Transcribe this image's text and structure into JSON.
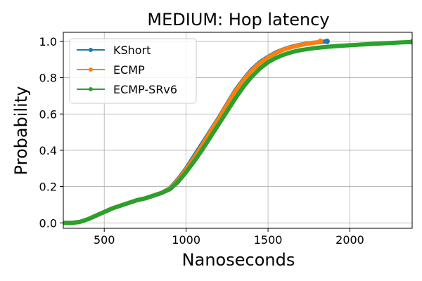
{
  "chart_data": {
    "type": "line",
    "title": "MEDIUM: Hop latency",
    "xlabel": "Nanoseconds",
    "ylabel": "Probability",
    "xlim": [
      250,
      2380
    ],
    "ylim": [
      -0.03,
      1.05
    ],
    "xticks": [
      500,
      1000,
      1500,
      2000
    ],
    "yticks": [
      0.0,
      0.2,
      0.4,
      0.6,
      0.8,
      1.0
    ],
    "xtick_labels": [
      "500",
      "1000",
      "1500",
      "2000"
    ],
    "ytick_labels": [
      "0.0",
      "0.2",
      "0.4",
      "0.6",
      "0.8",
      "1.0"
    ],
    "grid": true,
    "legend_position": "top-left",
    "series": [
      {
        "name": "KShort",
        "color": "#1f77b4",
        "x": [
          250,
          300,
          350,
          400,
          450,
          500,
          550,
          600,
          650,
          700,
          750,
          800,
          850,
          900,
          950,
          1000,
          1050,
          1100,
          1150,
          1200,
          1250,
          1300,
          1350,
          1400,
          1450,
          1500,
          1550,
          1600,
          1650,
          1700,
          1750,
          1800,
          1830,
          1860
        ],
        "y": [
          0.0,
          0.0,
          0.005,
          0.02,
          0.04,
          0.06,
          0.08,
          0.095,
          0.11,
          0.125,
          0.135,
          0.15,
          0.165,
          0.19,
          0.24,
          0.3,
          0.37,
          0.44,
          0.51,
          0.58,
          0.655,
          0.73,
          0.79,
          0.845,
          0.885,
          0.915,
          0.94,
          0.958,
          0.972,
          0.982,
          0.99,
          0.995,
          0.998,
          1.0
        ]
      },
      {
        "name": "ECMP",
        "color": "#ff7f0e",
        "x": [
          250,
          300,
          350,
          400,
          450,
          500,
          550,
          600,
          650,
          700,
          750,
          800,
          850,
          900,
          950,
          1000,
          1050,
          1100,
          1150,
          1200,
          1250,
          1300,
          1350,
          1400,
          1450,
          1500,
          1550,
          1600,
          1650,
          1700,
          1750,
          1800,
          1820
        ],
        "y": [
          0.0,
          0.0,
          0.005,
          0.02,
          0.04,
          0.06,
          0.08,
          0.095,
          0.11,
          0.125,
          0.135,
          0.15,
          0.165,
          0.19,
          0.235,
          0.295,
          0.36,
          0.43,
          0.505,
          0.575,
          0.65,
          0.725,
          0.785,
          0.84,
          0.88,
          0.912,
          0.937,
          0.956,
          0.97,
          0.98,
          0.989,
          0.995,
          1.0
        ]
      },
      {
        "name": "ECMP-SRv6",
        "color": "#2ca02c",
        "x": [
          250,
          300,
          350,
          400,
          450,
          500,
          550,
          600,
          650,
          700,
          750,
          800,
          850,
          900,
          950,
          1000,
          1050,
          1100,
          1150,
          1200,
          1250,
          1300,
          1350,
          1400,
          1450,
          1500,
          1550,
          1600,
          1650,
          1700,
          1800,
          1900,
          2000,
          2100,
          2200,
          2300,
          2380
        ],
        "y": [
          0.0,
          0.0,
          0.005,
          0.02,
          0.04,
          0.06,
          0.08,
          0.095,
          0.11,
          0.125,
          0.135,
          0.15,
          0.165,
          0.185,
          0.225,
          0.28,
          0.34,
          0.405,
          0.475,
          0.545,
          0.615,
          0.685,
          0.75,
          0.805,
          0.85,
          0.885,
          0.91,
          0.928,
          0.942,
          0.952,
          0.965,
          0.973,
          0.979,
          0.984,
          0.989,
          0.994,
          0.997
        ]
      }
    ]
  }
}
